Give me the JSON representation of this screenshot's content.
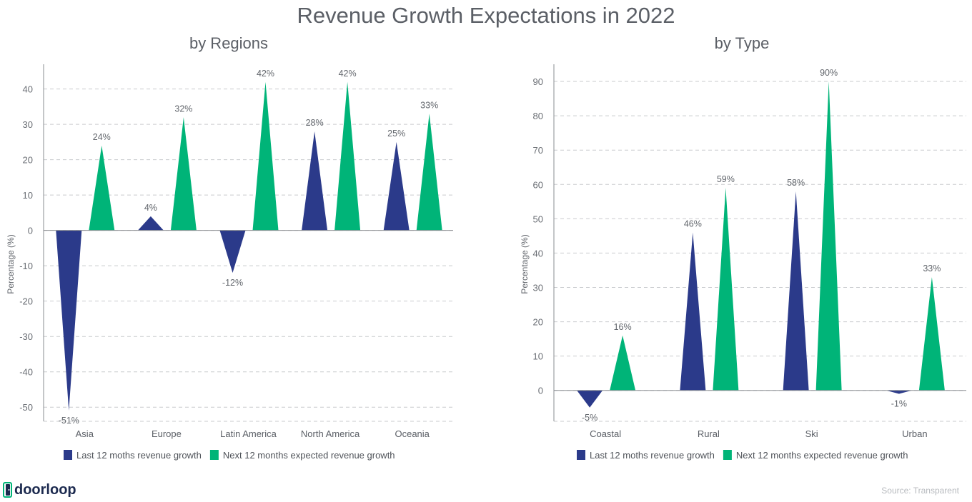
{
  "title": "Revenue Growth Expectations in 2022",
  "colors": {
    "last": "#2b3a8a",
    "next": "#00b478"
  },
  "legend": {
    "last": "Last 12 moths revenue growth",
    "next": "Next 12 months expected revenue growth"
  },
  "brand": {
    "name": "doorloop"
  },
  "source": "Source: Transparent",
  "chart_data": [
    {
      "type": "bar",
      "title": "by Regions",
      "ylabel": "Percentage (%)",
      "xlabel": "",
      "ylim": [
        -54,
        47
      ],
      "yticks": [
        -50,
        -40,
        -30,
        -20,
        -10,
        0,
        10,
        20,
        30,
        40
      ],
      "categories": [
        "Asia",
        "Europe",
        "Latin America",
        "North America",
        "Oceania"
      ],
      "series": [
        {
          "name": "Last 12 moths revenue growth",
          "values": [
            -51,
            4,
            -12,
            28,
            25
          ],
          "labels": [
            "-51%",
            "4%",
            "-12%",
            "28%",
            "25%"
          ]
        },
        {
          "name": "Next 12 months expected revenue growth",
          "values": [
            24,
            32,
            42,
            42,
            33
          ],
          "labels": [
            "24%",
            "32%",
            "42%",
            "42%",
            "33%"
          ]
        }
      ]
    },
    {
      "type": "bar",
      "title": "by Type",
      "ylabel": "Percentage (%)",
      "xlabel": "",
      "ylim": [
        -9,
        95
      ],
      "yticks": [
        0,
        10,
        20,
        30,
        40,
        50,
        60,
        70,
        80,
        90
      ],
      "categories": [
        "Coastal",
        "Rural",
        "Ski",
        "Urban"
      ],
      "series": [
        {
          "name": "Last 12 moths revenue growth",
          "values": [
            -5,
            46,
            58,
            -1
          ],
          "labels": [
            "-5%",
            "46%",
            "58%",
            "-1%"
          ]
        },
        {
          "name": "Next 12 months expected revenue growth",
          "values": [
            16,
            59,
            90,
            33
          ],
          "labels": [
            "16%",
            "59%",
            "90%",
            "33%"
          ]
        }
      ]
    }
  ]
}
